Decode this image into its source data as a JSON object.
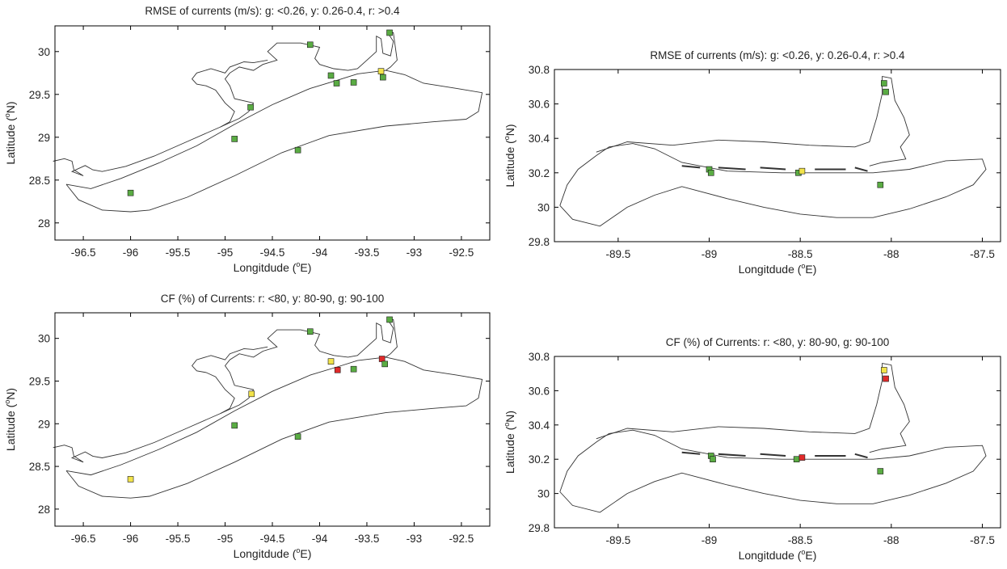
{
  "chart_data": [
    {
      "type": "scatter",
      "panel": "top-left",
      "title": "RMSE of currents (m/s):  g: <0.26, y: 0.26-0.4, r: >0.4",
      "xlabel": "Longitdude (",
      "xlabel_sup": "o",
      "xlabel_unit": "E)",
      "ylabel": "Latitude (",
      "ylabel_sup": "o",
      "ylabel_unit": "N)",
      "xlim": [
        -96.8,
        -92.2
      ],
      "ylim": [
        27.8,
        30.3
      ],
      "xticks": [
        "-96.5",
        "-96",
        "-95.5",
        "-95",
        "-94.5",
        "-94",
        "-93.5",
        "-93",
        "-92.5"
      ],
      "xtick_values": [
        -96.5,
        -96,
        -95.5,
        -95,
        -94.5,
        -94,
        -93.5,
        -93,
        -92.5
      ],
      "yticks": [
        "28",
        "28.5",
        "29",
        "29.5",
        "30"
      ],
      "ytick_values": [
        28,
        28.5,
        29,
        29.5,
        30
      ],
      "grid": false,
      "colors": {
        "g": "#5aac43",
        "y": "#f2e34a",
        "r": "#e02a2a"
      },
      "points": [
        {
          "x": -94.1,
          "y": 30.08,
          "c": "g"
        },
        {
          "x": -93.26,
          "y": 30.22,
          "c": "g"
        },
        {
          "x": -93.88,
          "y": 29.72,
          "c": "g"
        },
        {
          "x": -93.82,
          "y": 29.63,
          "c": "g"
        },
        {
          "x": -93.64,
          "y": 29.64,
          "c": "g"
        },
        {
          "x": -93.35,
          "y": 29.77,
          "c": "y"
        },
        {
          "x": -93.33,
          "y": 29.7,
          "c": "g"
        },
        {
          "x": -94.73,
          "y": 29.35,
          "c": "g"
        },
        {
          "x": -94.9,
          "y": 28.98,
          "c": "g"
        },
        {
          "x": -94.23,
          "y": 28.85,
          "c": "g"
        },
        {
          "x": -96.0,
          "y": 28.35,
          "c": "g"
        }
      ]
    },
    {
      "type": "scatter",
      "panel": "top-right",
      "title": "RMSE of currents (m/s):  g: <0.26, y: 0.26-0.4, r: >0.4",
      "xlabel": "Longitdude (",
      "xlabel_sup": "o",
      "xlabel_unit": "E)",
      "ylabel": "Latitude (",
      "ylabel_sup": "o",
      "ylabel_unit": "N)",
      "xlim": [
        -89.85,
        -87.4
      ],
      "ylim": [
        29.8,
        30.8
      ],
      "xticks": [
        "-89.5",
        "-89",
        "-88.5",
        "-88",
        "-87.5"
      ],
      "xtick_values": [
        -89.5,
        -89,
        -88.5,
        -88,
        -87.5
      ],
      "yticks": [
        "29.8",
        "30",
        "30.2",
        "30.4",
        "30.6",
        "30.8"
      ],
      "ytick_values": [
        29.8,
        30.0,
        30.2,
        30.4,
        30.6,
        30.8
      ],
      "grid": false,
      "colors": {
        "g": "#5aac43",
        "y": "#f2e34a",
        "r": "#e02a2a"
      },
      "points": [
        {
          "x": -88.04,
          "y": 30.72,
          "c": "g"
        },
        {
          "x": -88.03,
          "y": 30.67,
          "c": "g"
        },
        {
          "x": -89.0,
          "y": 30.22,
          "c": "g"
        },
        {
          "x": -88.99,
          "y": 30.2,
          "c": "g"
        },
        {
          "x": -88.51,
          "y": 30.2,
          "c": "g"
        },
        {
          "x": -88.49,
          "y": 30.21,
          "c": "y"
        },
        {
          "x": -88.06,
          "y": 30.13,
          "c": "g"
        }
      ]
    },
    {
      "type": "scatter",
      "panel": "bottom-left",
      "title": "CF (%) of Currents: r: <80, y: 80-90, g: 90-100",
      "xlabel": "Longitdude (",
      "xlabel_sup": "o",
      "xlabel_unit": "E)",
      "ylabel": "Latitude (",
      "ylabel_sup": "o",
      "ylabel_unit": "N)",
      "xlim": [
        -96.8,
        -92.2
      ],
      "ylim": [
        27.8,
        30.3
      ],
      "xticks": [
        "-96.5",
        "-96",
        "-95.5",
        "-95",
        "-94.5",
        "-94",
        "-93.5",
        "-93",
        "-92.5"
      ],
      "xtick_values": [
        -96.5,
        -96,
        -95.5,
        -95,
        -94.5,
        -94,
        -93.5,
        -93,
        -92.5
      ],
      "yticks": [
        "28",
        "28.5",
        "29",
        "29.5",
        "30"
      ],
      "ytick_values": [
        28,
        28.5,
        29,
        29.5,
        30
      ],
      "grid": false,
      "colors": {
        "g": "#5aac43",
        "y": "#f2e34a",
        "r": "#e02a2a"
      },
      "points": [
        {
          "x": -94.1,
          "y": 30.08,
          "c": "g"
        },
        {
          "x": -93.26,
          "y": 30.22,
          "c": "g"
        },
        {
          "x": -93.88,
          "y": 29.73,
          "c": "y"
        },
        {
          "x": -93.81,
          "y": 29.63,
          "c": "r"
        },
        {
          "x": -93.64,
          "y": 29.64,
          "c": "g"
        },
        {
          "x": -93.34,
          "y": 29.76,
          "c": "r"
        },
        {
          "x": -93.31,
          "y": 29.7,
          "c": "g"
        },
        {
          "x": -94.72,
          "y": 29.35,
          "c": "y"
        },
        {
          "x": -94.9,
          "y": 28.98,
          "c": "g"
        },
        {
          "x": -94.23,
          "y": 28.85,
          "c": "g"
        },
        {
          "x": -96.0,
          "y": 28.35,
          "c": "y"
        }
      ]
    },
    {
      "type": "scatter",
      "panel": "bottom-right",
      "title": "CF (%) of Currents: r: <80, y: 80-90, g: 90-100",
      "xlabel": "Longitdude (",
      "xlabel_sup": "o",
      "xlabel_unit": "E)",
      "ylabel": "Latitude (",
      "ylabel_sup": "o",
      "ylabel_unit": "N)",
      "xlim": [
        -89.85,
        -87.4
      ],
      "ylim": [
        29.8,
        30.8
      ],
      "xticks": [
        "-89.5",
        "-89",
        "-88.5",
        "-88",
        "-87.5"
      ],
      "xtick_values": [
        -89.5,
        -89,
        -88.5,
        -88,
        -87.5
      ],
      "yticks": [
        "29.8",
        "30",
        "30.2",
        "30.4",
        "30.6",
        "30.8"
      ],
      "ytick_values": [
        29.8,
        30.0,
        30.2,
        30.4,
        30.6,
        30.8
      ],
      "grid": false,
      "colors": {
        "g": "#5aac43",
        "y": "#f2e34a",
        "r": "#e02a2a"
      },
      "points": [
        {
          "x": -88.04,
          "y": 30.72,
          "c": "y"
        },
        {
          "x": -88.03,
          "y": 30.67,
          "c": "r"
        },
        {
          "x": -88.99,
          "y": 30.22,
          "c": "g"
        },
        {
          "x": -88.98,
          "y": 30.2,
          "c": "g"
        },
        {
          "x": -88.52,
          "y": 30.2,
          "c": "g"
        },
        {
          "x": -88.49,
          "y": 30.21,
          "c": "r"
        },
        {
          "x": -88.06,
          "y": 30.13,
          "c": "g"
        }
      ]
    }
  ]
}
